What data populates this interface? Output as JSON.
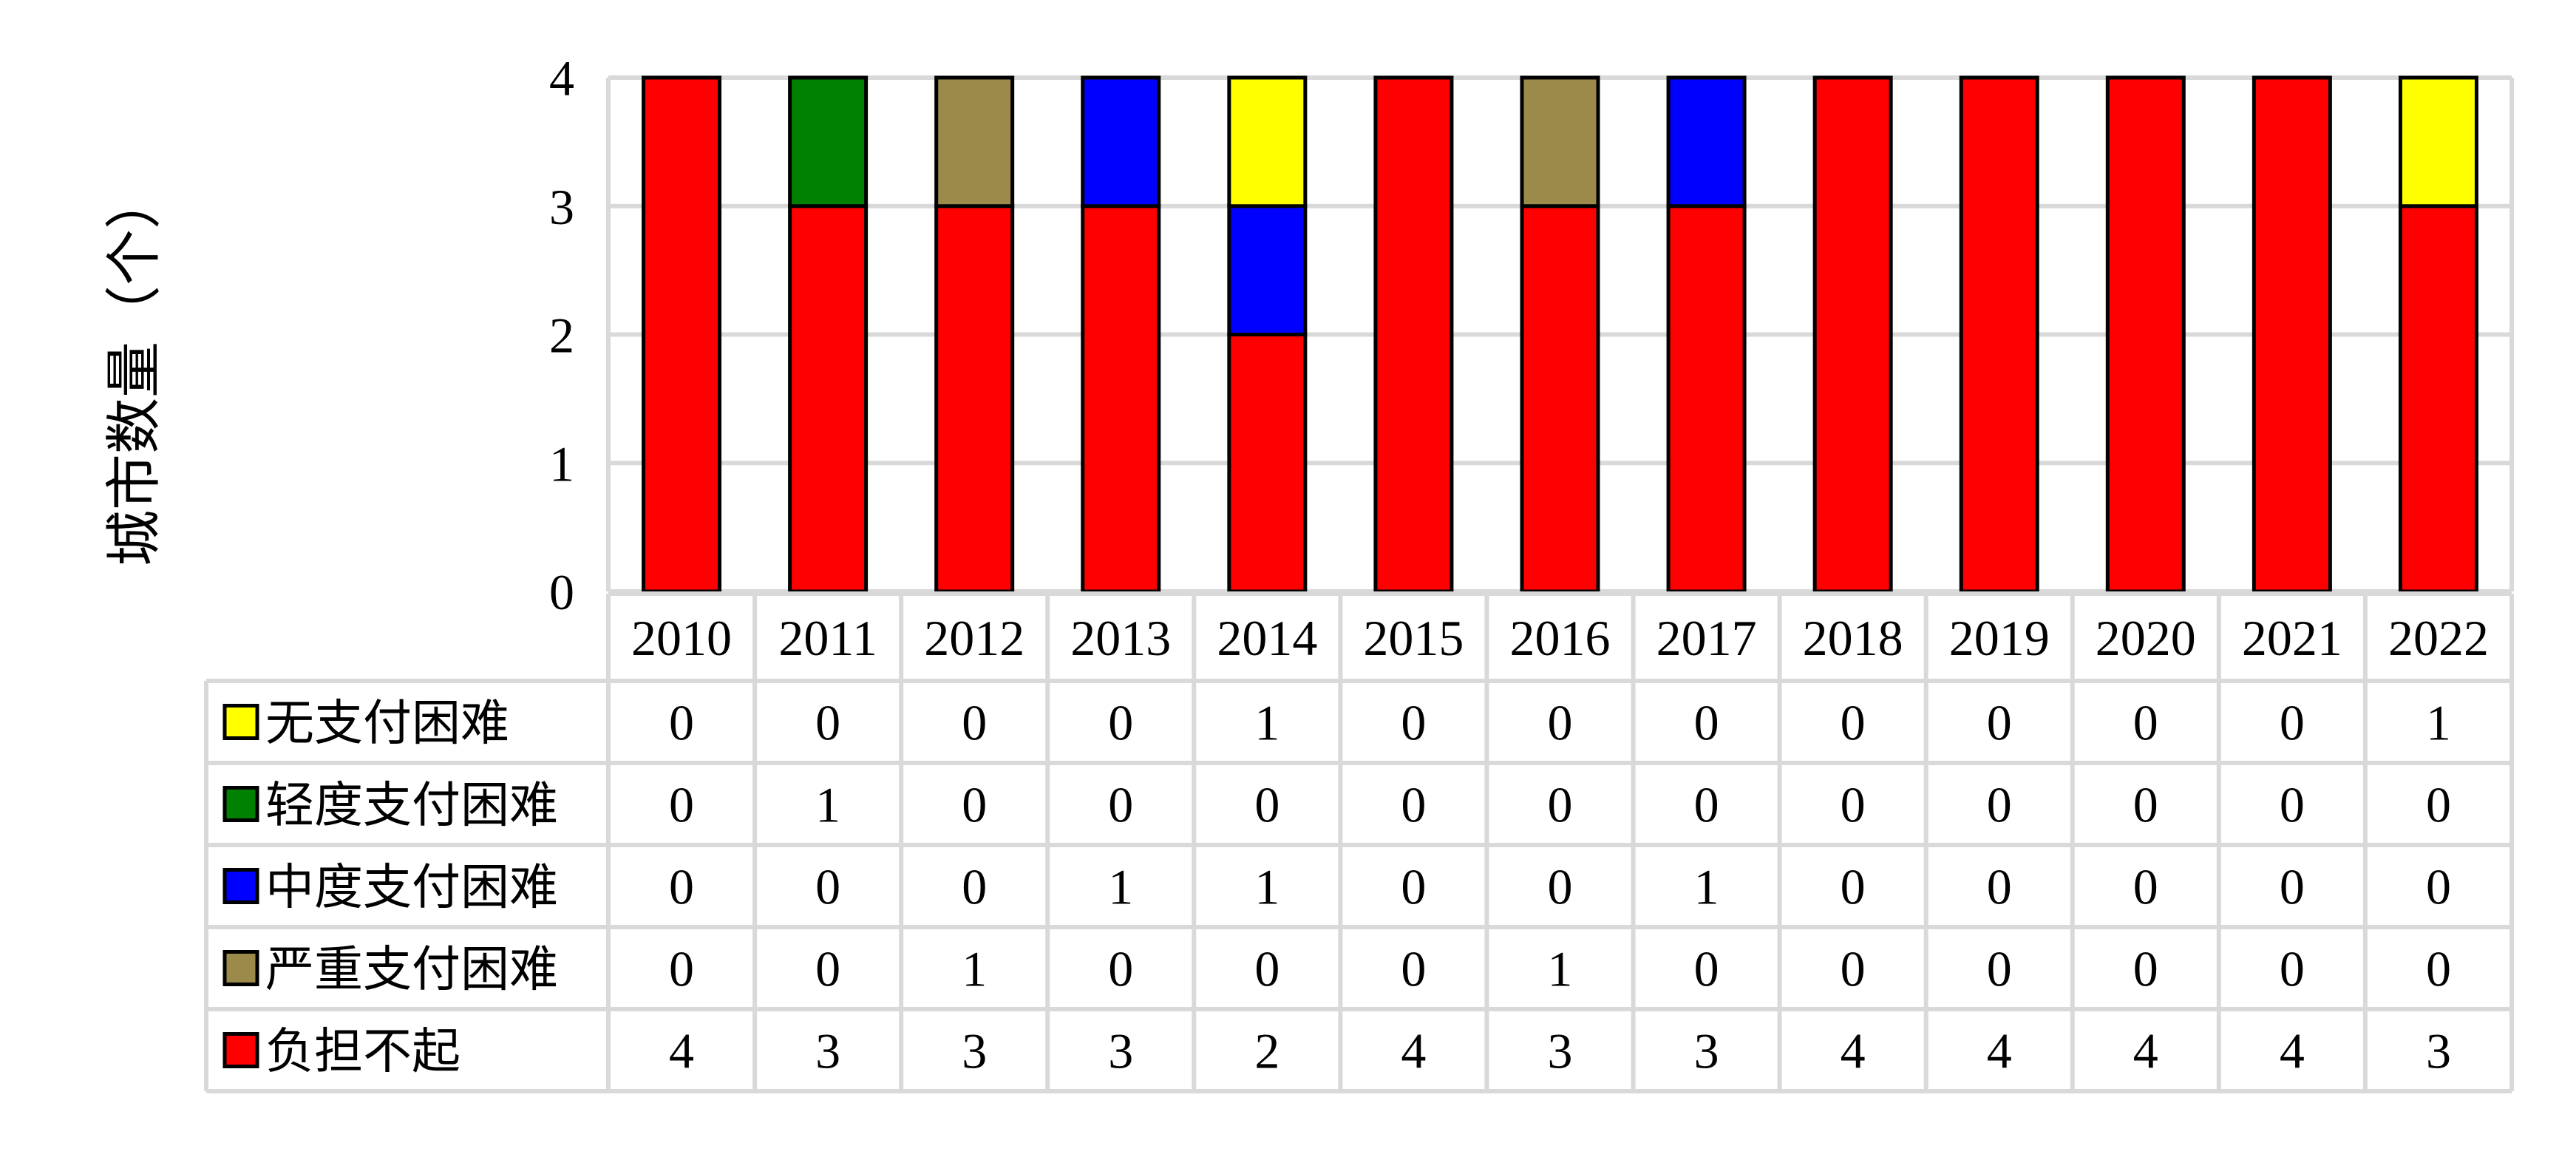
{
  "chart_data": {
    "type": "bar",
    "stacked": true,
    "title": "",
    "xlabel": "",
    "ylabel": "城市数量（个）",
    "ylim": [
      0,
      4
    ],
    "yticks": [
      "0",
      "1",
      "2",
      "3",
      "4"
    ],
    "grid": true,
    "legend": "data-table",
    "categories": [
      "2010",
      "2011",
      "2012",
      "2013",
      "2014",
      "2015",
      "2016",
      "2017",
      "2018",
      "2019",
      "2020",
      "2021",
      "2022"
    ],
    "series": [
      {
        "name": "负担不起",
        "color": "#FF0000",
        "values": [
          4,
          3,
          3,
          3,
          2,
          4,
          3,
          3,
          4,
          4,
          4,
          4,
          3
        ]
      },
      {
        "name": "严重支付困难",
        "color": "#9C8A4A",
        "values": [
          0,
          0,
          1,
          0,
          0,
          0,
          1,
          0,
          0,
          0,
          0,
          0,
          0
        ]
      },
      {
        "name": "中度支付困难",
        "color": "#0000FF",
        "values": [
          0,
          0,
          0,
          1,
          1,
          0,
          0,
          1,
          0,
          0,
          0,
          0,
          0
        ]
      },
      {
        "name": "轻度支付困难",
        "color": "#008000",
        "values": [
          0,
          1,
          0,
          0,
          0,
          0,
          0,
          0,
          0,
          0,
          0,
          0,
          0
        ]
      },
      {
        "name": "无支付困难",
        "color": "#FFFF00",
        "values": [
          0,
          0,
          0,
          0,
          1,
          0,
          0,
          0,
          0,
          0,
          0,
          0,
          1
        ]
      }
    ],
    "table_row_order": [
      "无支付困难",
      "轻度支付困难",
      "中度支付困难",
      "严重支付困难",
      "负担不起"
    ]
  }
}
